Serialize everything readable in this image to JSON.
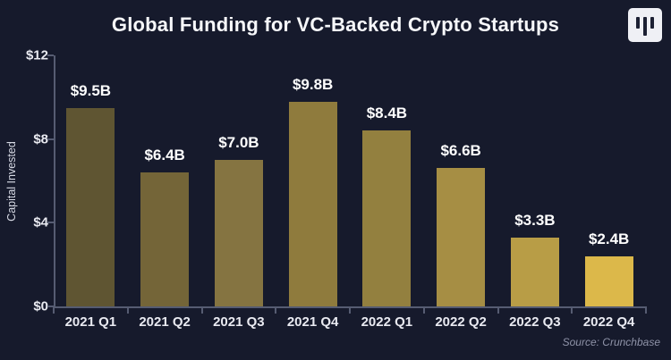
{
  "header": {
    "title": "Global Funding for VC-Backed Crypto Startups",
    "logo": "three-vertical-bars-logo"
  },
  "colors": {
    "background": "#161a2c",
    "axis": "#565c72",
    "title_text": "#f7f8fb",
    "tick_text": "#e9eaf1",
    "value_text": "#ffffff",
    "source_text": "#8f93a8",
    "logo_background": "#eff0f5",
    "logo_glyph": "#1c2033"
  },
  "chart_data": {
    "type": "bar",
    "title": "Global Funding for VC-Backed Crypto Startups",
    "xlabel": "",
    "ylabel": "Capital Invested",
    "categories": [
      "2021 Q1",
      "2021 Q2",
      "2021 Q3",
      "2021 Q4",
      "2022 Q1",
      "2022 Q2",
      "2022 Q3",
      "2022 Q4"
    ],
    "values": [
      9.5,
      6.4,
      7.0,
      9.8,
      8.4,
      6.6,
      3.3,
      2.4
    ],
    "value_labels": [
      "$9.5B",
      "$6.4B",
      "$7.0B",
      "$9.8B",
      "$8.4B",
      "$6.6B",
      "$3.3B",
      "$2.4B"
    ],
    "bar_colors": [
      "#5f5532",
      "#746538",
      "#857441",
      "#8f7b3d",
      "#93803f",
      "#a68e44",
      "#b89d46",
      "#dcb84a"
    ],
    "ylim": [
      0,
      12
    ],
    "y_ticks": [
      {
        "label": "$0",
        "value": 0
      },
      {
        "label": "$4",
        "value": 4
      },
      {
        "label": "$8",
        "value": 8
      },
      {
        "label": "$12",
        "value": 12
      }
    ],
    "grid": false,
    "legend": false,
    "source": "Source: Crunchbase"
  }
}
